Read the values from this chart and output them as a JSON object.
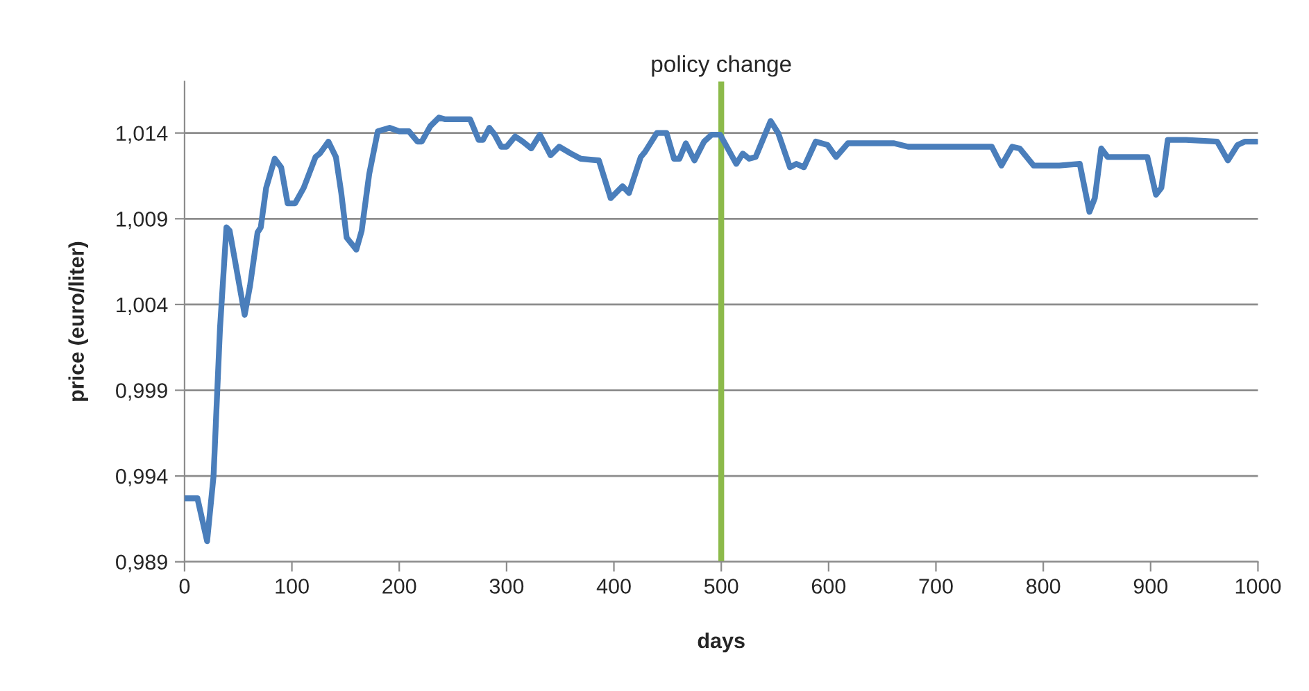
{
  "chart_data": {
    "type": "line",
    "xlabel": "days",
    "ylabel": "price (euro/liter)",
    "x": [
      0,
      12,
      21,
      27,
      33,
      39,
      42,
      56,
      61,
      68,
      71,
      76,
      84,
      90,
      96,
      103,
      111,
      122,
      126,
      134,
      141,
      146,
      151,
      160,
      165,
      172,
      180,
      191,
      200,
      209,
      217,
      221,
      229,
      237,
      243,
      266,
      274,
      278,
      284,
      289,
      295,
      300,
      308,
      315,
      323,
      331,
      341,
      349,
      360,
      369,
      386,
      397,
      408,
      414,
      425,
      429,
      440,
      449,
      456,
      461,
      467,
      475,
      484,
      491,
      499,
      514,
      520,
      526,
      532,
      546,
      553,
      564,
      570,
      577,
      588,
      599,
      607,
      618,
      661,
      674,
      752,
      761,
      771,
      778,
      791,
      804,
      815,
      834,
      843,
      848,
      854,
      860,
      897,
      905,
      910,
      916,
      933,
      962,
      972,
      981,
      988,
      999
    ],
    "series": [
      {
        "color": "#4a7ebb",
        "values": [
          0.9927,
          0.9927,
          0.9902,
          0.994,
          1.0026,
          1.0085,
          1.0083,
          1.0034,
          1.0051,
          1.0082,
          1.0085,
          1.0108,
          1.0125,
          1.012,
          1.0099,
          1.0099,
          1.0108,
          1.0126,
          1.0128,
          1.0135,
          1.0126,
          1.0105,
          1.0079,
          1.0072,
          1.0083,
          1.0116,
          1.0141,
          1.0143,
          1.0141,
          1.0141,
          1.0135,
          1.0135,
          1.0144,
          1.0149,
          1.0148,
          1.0148,
          1.0136,
          1.0136,
          1.0143,
          1.0139,
          1.0132,
          1.0132,
          1.0138,
          1.0135,
          1.0131,
          1.0139,
          1.0127,
          1.0132,
          1.0128,
          1.0125,
          1.0124,
          1.0102,
          1.0109,
          1.0105,
          1.0126,
          1.0129,
          1.014,
          1.014,
          1.0125,
          1.0125,
          1.0134,
          1.0124,
          1.0135,
          1.0139,
          1.0139,
          1.0122,
          1.0128,
          1.0125,
          1.0126,
          1.0147,
          1.014,
          1.012,
          1.0122,
          1.012,
          1.0135,
          1.0133,
          1.0126,
          1.0134,
          1.0134,
          1.0132,
          1.0132,
          1.0121,
          1.0132,
          1.0131,
          1.0121,
          1.0121,
          1.0121,
          1.0122,
          1.0094,
          1.0102,
          1.0131,
          1.0126,
          1.0126,
          1.0104,
          1.0108,
          1.0136,
          1.0136,
          1.0135,
          1.0124,
          1.0133,
          1.0135,
          1.0135
        ]
      }
    ],
    "xlim": [
      0,
      1000
    ],
    "xticks": [
      0,
      100,
      200,
      300,
      400,
      500,
      600,
      700,
      800,
      900,
      1000
    ],
    "ylim": [
      0.989,
      1.017
    ],
    "yticks": [
      {
        "value": 0.989,
        "label": "0,989"
      },
      {
        "value": 0.994,
        "label": "0,994"
      },
      {
        "value": 0.999,
        "label": "0,999"
      },
      {
        "value": 1.004,
        "label": "1,004"
      },
      {
        "value": 1.009,
        "label": "1,009"
      },
      {
        "value": 1.014,
        "label": "1,014"
      }
    ],
    "ref_lines": [
      {
        "axis": "x",
        "value": 500,
        "label": "policy change",
        "color": "#8cba4a"
      }
    ],
    "grid": "y",
    "marker": "none",
    "line_style": "solid"
  }
}
